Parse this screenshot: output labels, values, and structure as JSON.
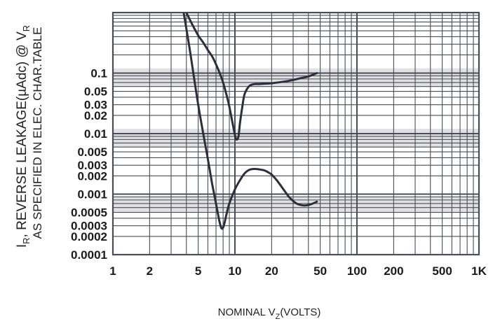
{
  "chart_data": {
    "type": "line",
    "title": "",
    "x_scale": "log",
    "y_scale": "log",
    "xlim": [
      1,
      1000
    ],
    "ylim": [
      0.0001,
      1
    ],
    "grid": true,
    "xlabel": {
      "main": "NOMINAL V",
      "sub": "Z",
      "tail": "(VOLTS)"
    },
    "ylabel": {
      "line1_main": "I",
      "line1_sub1": "R",
      "line1_mid": ", REVERSE LEAKAGE(µAdc) @ V",
      "line1_sub2": "R",
      "line2": "AS SPECIFIED IN ELEC. CHAR.TABLE"
    },
    "x_ticks": [
      {
        "value": 1,
        "label": "1"
      },
      {
        "value": 2,
        "label": "2"
      },
      {
        "value": 5,
        "label": "5"
      },
      {
        "value": 10,
        "label": "10"
      },
      {
        "value": 20,
        "label": "20"
      },
      {
        "value": 50,
        "label": "50"
      },
      {
        "value": 100,
        "label": "100"
      },
      {
        "value": 200,
        "label": "200"
      },
      {
        "value": 500,
        "label": "500"
      },
      {
        "value": 1000,
        "label": "1K"
      }
    ],
    "y_ticks": [
      {
        "value": 0.1,
        "label": "0.1"
      },
      {
        "value": 0.05,
        "label": "0.05"
      },
      {
        "value": 0.03,
        "label": "0.03"
      },
      {
        "value": 0.02,
        "label": "0.02"
      },
      {
        "value": 0.01,
        "label": "0.01"
      },
      {
        "value": 0.005,
        "label": "0.005"
      },
      {
        "value": 0.003,
        "label": "0.003"
      },
      {
        "value": 0.002,
        "label": "0.002"
      },
      {
        "value": 0.001,
        "label": "0.001"
      },
      {
        "value": 0.0005,
        "label": "0.0005"
      },
      {
        "value": 0.0003,
        "label": "0.0003"
      },
      {
        "value": 0.0002,
        "label": "0.0002"
      },
      {
        "value": 0.0001,
        "label": "0.0001"
      }
    ],
    "series": [
      {
        "x": [
          4.0,
          4.5,
          5.0,
          5.5,
          6.0,
          6.5,
          7.0,
          7.5,
          8.0,
          8.5,
          9.0,
          9.5,
          10.0,
          10.3,
          10.7,
          11.0,
          11.5,
          12.0,
          13.0,
          14.0,
          15.0,
          16.0,
          18.0,
          20.0,
          25.0,
          30.0,
          35.0,
          40.0,
          47.0
        ],
        "y": [
          1.0,
          0.62,
          0.42,
          0.32,
          0.24,
          0.19,
          0.14,
          0.1,
          0.07,
          0.045,
          0.028,
          0.016,
          0.0095,
          0.008,
          0.009,
          0.015,
          0.028,
          0.045,
          0.06,
          0.065,
          0.066,
          0.066,
          0.067,
          0.068,
          0.072,
          0.077,
          0.083,
          0.088,
          0.1
        ],
        "color": "#2c2f3a"
      },
      {
        "x": [
          3.8,
          4.2,
          4.6,
          5.0,
          5.5,
          6.0,
          6.5,
          7.0,
          7.5,
          7.8,
          8.1,
          8.5,
          9.0,
          10.0,
          11.0,
          12.0,
          13.0,
          14.0,
          15.0,
          16.0,
          17.0,
          18.0,
          20.0,
          22.0,
          25.0,
          28.0,
          32.0,
          37.0,
          42.0,
          47.0
        ],
        "y": [
          1.0,
          0.3,
          0.09,
          0.03,
          0.01,
          0.0038,
          0.0015,
          0.0007,
          0.00034,
          0.00027,
          0.0003,
          0.00045,
          0.0007,
          0.0012,
          0.0017,
          0.0022,
          0.0025,
          0.0026,
          0.0026,
          0.00255,
          0.0025,
          0.0024,
          0.0021,
          0.0017,
          0.0012,
          0.00088,
          0.0007,
          0.00065,
          0.00068,
          0.00075
        ],
        "color": "#2c2f3a"
      }
    ]
  },
  "style": {
    "grid_color": "#4a4d57",
    "band_color": "#c8c8cc",
    "curve_color": "#2c2f3a",
    "background": "#ffffff"
  }
}
